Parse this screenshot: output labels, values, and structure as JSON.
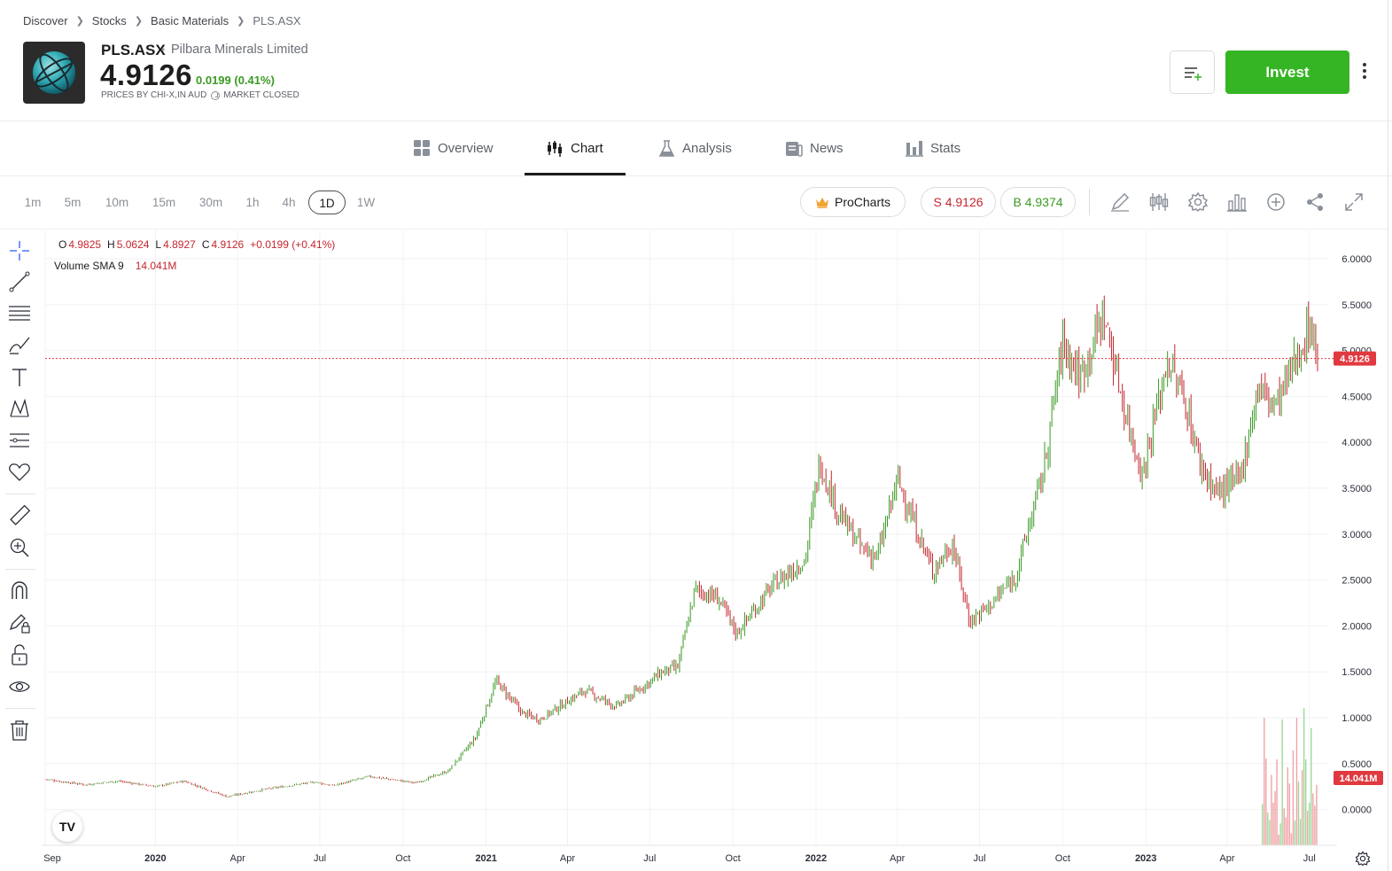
{
  "breadcrumb": [
    "Discover",
    "Stocks",
    "Basic Materials",
    "PLS.ASX"
  ],
  "instrument": {
    "ticker": "PLS.ASX",
    "name": "Pilbara Minerals Limited",
    "price": "4.9126",
    "change": "0.0199 (0.41%)",
    "price_source": "PRICES BY CHI-X,IN AUD",
    "market_status": "MARKET CLOSED"
  },
  "actions": {
    "invest_label": "Invest"
  },
  "tabs": [
    {
      "label": "Overview",
      "icon": "grid-icon"
    },
    {
      "label": "Chart",
      "icon": "candles-icon",
      "active": true
    },
    {
      "label": "Analysis",
      "icon": "flask-icon"
    },
    {
      "label": "News",
      "icon": "newspaper-icon"
    },
    {
      "label": "Stats",
      "icon": "bar-chart-icon"
    }
  ],
  "timeframes": [
    "1m",
    "5m",
    "10m",
    "15m",
    "30m",
    "1h",
    "4h",
    "1D",
    "1W"
  ],
  "active_timeframe": "1D",
  "prochart_label": "ProCharts",
  "sell_label": "S 4.9126",
  "buy_label": "B 4.9374",
  "ohlc": {
    "o_label": "O",
    "o": "4.9825",
    "h_label": "H",
    "h": "5.0624",
    "l_label": "L",
    "l": "4.8927",
    "c_label": "C",
    "c": "4.9126",
    "chg": "+0.0199 (+0.41%)"
  },
  "volume": {
    "label": "Volume SMA 9",
    "value": "14.041M"
  },
  "colors": {
    "up": "#3a9a23",
    "down": "#c4262e",
    "accent": "#36b524",
    "last_price": "#e0393f"
  },
  "chart_data": {
    "type": "candlestick",
    "interval": "1D",
    "x_tick_labels": [
      "Sep",
      "2020",
      "Apr",
      "Jul",
      "Oct",
      "2021",
      "Apr",
      "Jul",
      "Oct",
      "2022",
      "Apr",
      "Jul",
      "Oct",
      "2023",
      "Apr",
      "Jul"
    ],
    "y_tick_labels": [
      "6.0000",
      "5.5000",
      "5.0000",
      "4.5000",
      "4.0000",
      "3.5000",
      "3.0000",
      "2.5000",
      "2.0000",
      "1.5000",
      "1.0000",
      "0.5000",
      "0.0000"
    ],
    "ylim": [
      -0.4,
      6.2
    ],
    "last_price_label": "4.9126",
    "last_price": 4.9126,
    "volume_label": "14.041M",
    "close_series": [
      {
        "date": "2019-09-01",
        "close": 0.33
      },
      {
        "date": "2019-10-15",
        "close": 0.27
      },
      {
        "date": "2019-11-20",
        "close": 0.31
      },
      {
        "date": "2020-01-01",
        "close": 0.25
      },
      {
        "date": "2020-02-01",
        "close": 0.31
      },
      {
        "date": "2020-03-20",
        "close": 0.14
      },
      {
        "date": "2020-05-01",
        "close": 0.22
      },
      {
        "date": "2020-06-25",
        "close": 0.3
      },
      {
        "date": "2020-07-15",
        "close": 0.26
      },
      {
        "date": "2020-08-25",
        "close": 0.36
      },
      {
        "date": "2020-10-15",
        "close": 0.29
      },
      {
        "date": "2020-11-20",
        "close": 0.42
      },
      {
        "date": "2020-12-20",
        "close": 0.78
      },
      {
        "date": "2021-01-12",
        "close": 1.4
      },
      {
        "date": "2021-02-10",
        "close": 1.05
      },
      {
        "date": "2021-03-01",
        "close": 0.98
      },
      {
        "date": "2021-04-20",
        "close": 1.3
      },
      {
        "date": "2021-05-25",
        "close": 1.12
      },
      {
        "date": "2021-07-15",
        "close": 1.5
      },
      {
        "date": "2021-08-01",
        "close": 1.55
      },
      {
        "date": "2021-08-20",
        "close": 2.4
      },
      {
        "date": "2021-09-15",
        "close": 2.3
      },
      {
        "date": "2021-10-05",
        "close": 1.92
      },
      {
        "date": "2021-11-15",
        "close": 2.45
      },
      {
        "date": "2021-12-20",
        "close": 2.72
      },
      {
        "date": "2022-01-05",
        "close": 3.8
      },
      {
        "date": "2022-01-25",
        "close": 3.25
      },
      {
        "date": "2022-02-20",
        "close": 2.85
      },
      {
        "date": "2022-03-10",
        "close": 2.75
      },
      {
        "date": "2022-04-01",
        "close": 3.6
      },
      {
        "date": "2022-05-10",
        "close": 2.6
      },
      {
        "date": "2022-06-01",
        "close": 2.9
      },
      {
        "date": "2022-06-20",
        "close": 2.05
      },
      {
        "date": "2022-07-15",
        "close": 2.25
      },
      {
        "date": "2022-08-10",
        "close": 2.55
      },
      {
        "date": "2022-09-10",
        "close": 3.7
      },
      {
        "date": "2022-10-01",
        "close": 5.1
      },
      {
        "date": "2022-10-20",
        "close": 4.7
      },
      {
        "date": "2022-11-15",
        "close": 5.4
      },
      {
        "date": "2022-12-10",
        "close": 4.3
      },
      {
        "date": "2022-12-28",
        "close": 3.65
      },
      {
        "date": "2023-01-25",
        "close": 4.9
      },
      {
        "date": "2023-02-15",
        "close": 4.4
      },
      {
        "date": "2023-03-01",
        "close": 3.8
      },
      {
        "date": "2023-03-20",
        "close": 3.45
      },
      {
        "date": "2023-04-15",
        "close": 3.6
      },
      {
        "date": "2023-05-05",
        "close": 4.6
      },
      {
        "date": "2023-05-25",
        "close": 4.4
      },
      {
        "date": "2023-06-20",
        "close": 5.0
      },
      {
        "date": "2023-07-03",
        "close": 5.3
      },
      {
        "date": "2023-07-10",
        "close": 4.91
      }
    ]
  }
}
